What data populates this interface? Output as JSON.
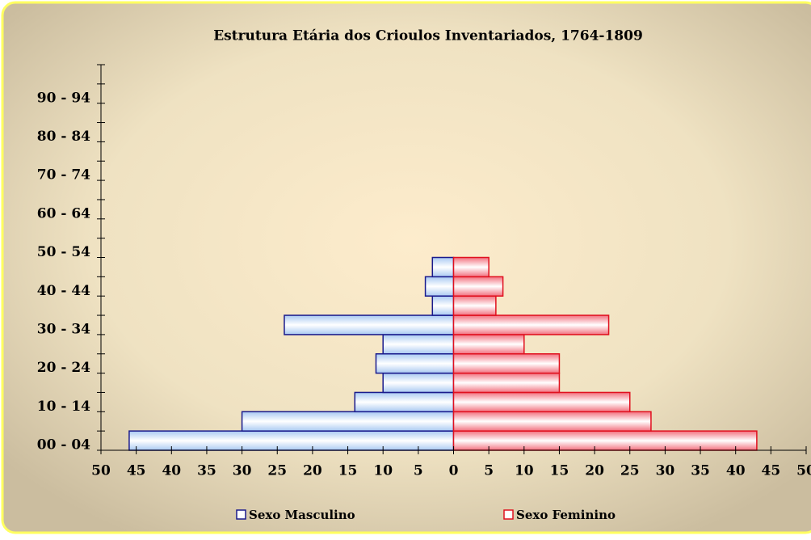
{
  "chart_data": {
    "type": "pyramid",
    "title": "Estrutura Etária dos Crioulos Inventariados, 1764-1809",
    "categories": [
      "00 - 04",
      null,
      "10 - 14",
      null,
      "20 - 24",
      null,
      "30 - 34",
      null,
      "40 - 44",
      null,
      "50 - 54",
      null,
      "60 - 64",
      null,
      "70 - 74",
      null,
      "80 - 84",
      null,
      "90 - 94",
      null
    ],
    "series": [
      {
        "name": "Sexo Masculino",
        "color": "#a9c9f2",
        "edge": "#1a1a8c",
        "values": [
          -46,
          -30,
          -14,
          -10,
          -11,
          -10,
          -24,
          -3,
          -4,
          -3,
          0,
          0,
          0,
          0,
          0,
          0,
          0,
          0,
          0,
          0
        ]
      },
      {
        "name": "Sexo Feminino",
        "color": "#f2707e",
        "edge": "#e0101e",
        "values": [
          43,
          28,
          25,
          15,
          15,
          10,
          22,
          6,
          7,
          5,
          0,
          0,
          0,
          0,
          0,
          0,
          0,
          0,
          0,
          0
        ]
      }
    ],
    "xlim": [
      -50,
      50
    ],
    "xticks": [
      {
        "value": -50,
        "label": "50"
      },
      {
        "value": -45,
        "label": "45"
      },
      {
        "value": -40,
        "label": "40"
      },
      {
        "value": -35,
        "label": "35"
      },
      {
        "value": -30,
        "label": "30"
      },
      {
        "value": -25,
        "label": "25"
      },
      {
        "value": -20,
        "label": "20"
      },
      {
        "value": -15,
        "label": "15"
      },
      {
        "value": -10,
        "label": "10"
      },
      {
        "value": -5,
        "label": "5"
      },
      0,
      5,
      10,
      15,
      20,
      25,
      30,
      35,
      40,
      45,
      50
    ]
  }
}
